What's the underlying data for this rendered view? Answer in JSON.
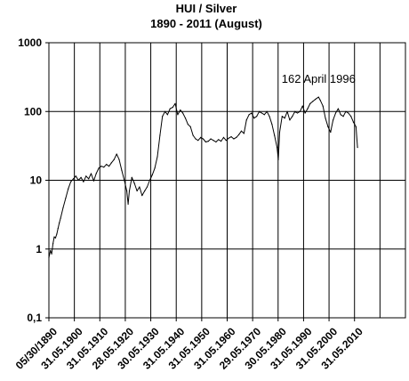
{
  "chart_data": {
    "type": "line",
    "title": "HUI / Silver",
    "subtitle": "1890  -  2011 (August)",
    "yscale": "log",
    "ylim": [
      0.1,
      1000
    ],
    "y_ticks": [
      {
        "value": 1000,
        "label": "1000"
      },
      {
        "value": 100,
        "label": "100"
      },
      {
        "value": 10,
        "label": "10"
      },
      {
        "value": 1,
        "label": "1"
      },
      {
        "value": 0.1,
        "label": "0,1"
      }
    ],
    "xlim": [
      1890.41,
      2030.41
    ],
    "x_ticks": [
      {
        "value": 1890.41,
        "label": "05/30/1890"
      },
      {
        "value": 1900.41,
        "label": "31.05.1900"
      },
      {
        "value": 1910.41,
        "label": "31.05.1910"
      },
      {
        "value": 1920.41,
        "label": "28.05.1920"
      },
      {
        "value": 1930.41,
        "label": "30.05.1930"
      },
      {
        "value": 1940.41,
        "label": "31.05.1940"
      },
      {
        "value": 1950.41,
        "label": "31.05.1950"
      },
      {
        "value": 1960.41,
        "label": "31.05.1960"
      },
      {
        "value": 1970.41,
        "label": "29.05.1970"
      },
      {
        "value": 1980.41,
        "label": "30.05.1980"
      },
      {
        "value": 1990.41,
        "label": "31.05.1990"
      },
      {
        "value": 2000.41,
        "label": "31.05.2000"
      },
      {
        "value": 2010.41,
        "label": "31.05.2010"
      }
    ],
    "grid": true,
    "annotation": {
      "text": "162 April 1996",
      "x": 1996.3,
      "y": 162
    },
    "series": [
      {
        "color": "#000000",
        "x": [
          1890.4,
          1891.0,
          1891.5,
          1892.0,
          1892.5,
          1893.0,
          1893.5,
          1894.0,
          1894.5,
          1895.0,
          1896.0,
          1897.0,
          1898.0,
          1899.0,
          1900.0,
          1901.0,
          1902.0,
          1903.0,
          1904.0,
          1905.0,
          1906.0,
          1907.0,
          1908.0,
          1909.0,
          1910.0,
          1911.0,
          1912.0,
          1913.0,
          1914.0,
          1915.0,
          1916.0,
          1917.0,
          1918.0,
          1919.0,
          1920.0,
          1921.0,
          1921.5,
          1922.0,
          1923.0,
          1924.0,
          1925.0,
          1926.0,
          1927.0,
          1928.0,
          1929.0,
          1930.0,
          1931.0,
          1932.0,
          1933.0,
          1934.0,
          1935.0,
          1936.0,
          1937.0,
          1938.0,
          1939.0,
          1940.0,
          1941.0,
          1942.0,
          1943.0,
          1944.0,
          1945.0,
          1946.0,
          1947.0,
          1948.0,
          1949.0,
          1950.0,
          1951.0,
          1952.0,
          1953.0,
          1954.0,
          1955.0,
          1956.0,
          1957.0,
          1958.0,
          1959.0,
          1960.0,
          1961.0,
          1962.0,
          1963.0,
          1964.0,
          1965.0,
          1966.0,
          1967.0,
          1968.0,
          1969.0,
          1970.0,
          1971.0,
          1972.0,
          1973.0,
          1974.0,
          1975.0,
          1976.0,
          1977.0,
          1978.0,
          1979.0,
          1980.0,
          1980.5,
          1981.0,
          1982.0,
          1983.0,
          1984.0,
          1985.0,
          1986.0,
          1987.0,
          1988.0,
          1989.0,
          1990.0,
          1991.0,
          1992.0,
          1993.0,
          1994.0,
          1995.0,
          1996.3,
          1997.0,
          1998.0,
          1999.0,
          2000.0,
          2001.0,
          2002.0,
          2003.0,
          2004.0,
          2005.0,
          2006.0,
          2007.0,
          2008.0,
          2009.0,
          2010.0,
          2011.0,
          2011.6
        ],
        "y": [
          0.75,
          0.95,
          0.85,
          1.2,
          1.5,
          1.45,
          1.65,
          2.0,
          2.4,
          2.8,
          4.0,
          5.5,
          7.5,
          9.5,
          10.5,
          11.5,
          10.0,
          11.0,
          9.5,
          11.5,
          10.5,
          12.5,
          9.8,
          12.5,
          15.0,
          16.0,
          15.5,
          17.0,
          16.0,
          18.0,
          20.0,
          24.0,
          20.0,
          14.0,
          10.0,
          7.0,
          4.5,
          7.0,
          11.0,
          9.0,
          7.0,
          8.0,
          6.0,
          7.0,
          8.0,
          10.0,
          12.0,
          15.0,
          22.0,
          45.0,
          85.0,
          100.0,
          90.0,
          110.0,
          115.0,
          130.0,
          90.0,
          105.0,
          95.0,
          80.0,
          65.0,
          60.0,
          45.0,
          40.0,
          38.0,
          42.0,
          40.0,
          36.0,
          37.0,
          40.0,
          38.0,
          36.0,
          39.0,
          37.0,
          42.0,
          38.0,
          41.0,
          43.0,
          40.0,
          42.0,
          46.0,
          52.0,
          48.0,
          75.0,
          90.0,
          95.0,
          80.0,
          85.0,
          100.0,
          95.0,
          90.0,
          100.0,
          85.0,
          65.0,
          45.0,
          30.0,
          20.0,
          50.0,
          85.0,
          80.0,
          100.0,
          75.0,
          85.0,
          100.0,
          95.0,
          100.0,
          120.0,
          95.0,
          110.0,
          130.0,
          140.0,
          150.0,
          162.0,
          145.0,
          120.0,
          80.0,
          60.0,
          50.0,
          75.0,
          95.0,
          110.0,
          90.0,
          85.0,
          100.0,
          95.0,
          85.0,
          70.0,
          60.0,
          30.0
        ]
      }
    ]
  }
}
